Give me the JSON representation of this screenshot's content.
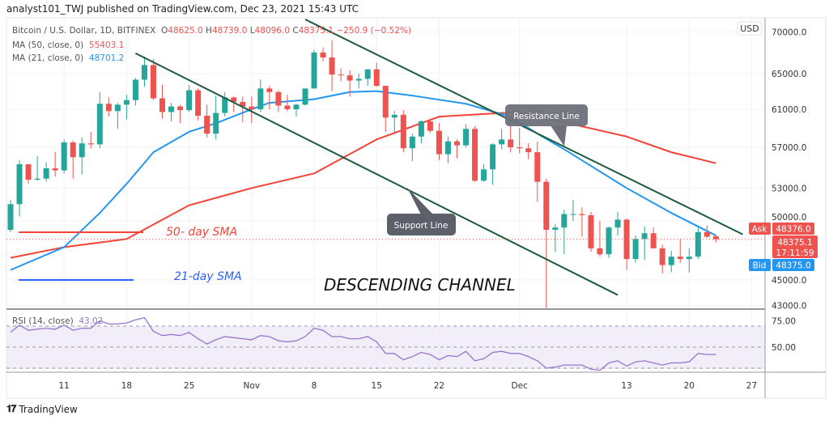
{
  "publish_line": "analyst101_TWJ published on TradingView.com, Dec 23, 2021 15:43 UTC",
  "legend": {
    "symbol": "Bitcoin / U.S. Dollar, 1D, BITFINEX",
    "o_label": "O",
    "o": "48625.0",
    "h_label": "H",
    "h": "48739.0",
    "l_label": "L",
    "l": "48096.0",
    "c_label": "C",
    "c": "48375.1",
    "change": "−250.9 (−0.52%)",
    "ma50_label": "MA (50, close, 0)",
    "ma50_value": "55403.1",
    "ma21_label": "MA (21, close, 0)",
    "ma21_value": "48701.2",
    "rsi_label": "RSI (14, close)",
    "rsi_value": "43.02"
  },
  "currency_button": "USD",
  "price_labels": {
    "ask_tag": "Ask",
    "ask": "48376.0",
    "last": "48375.1",
    "countdown": "17:11:59",
    "bid_tag": "Bid",
    "bid": "48375.0"
  },
  "annotations": {
    "sma50_text": "50- day SMA",
    "sma21_text": "21-day SMA",
    "support": "Support Line",
    "resistance": "Resistance Line",
    "title": "DESCENDING CHANNEL"
  },
  "footer": {
    "brand": "TradingView"
  },
  "colors": {
    "up": "#26a69a",
    "down": "#ef5350",
    "ma50": "#f44336",
    "ma21": "#2196f3",
    "rsi": "#9575cd",
    "trendline": "#1e5a3c"
  },
  "chart_data": {
    "type": "candlestick",
    "y_scale": "log",
    "ylim": [
      42000,
      71000
    ],
    "y_ticks": [
      {
        "label": "70000.0",
        "value": 70000
      },
      {
        "label": "65000.0",
        "value": 65000
      },
      {
        "label": "61000.0",
        "value": 61000
      },
      {
        "label": "57000.0",
        "value": 57000
      },
      {
        "label": "53000.0",
        "value": 53000
      },
      {
        "label": "50000.0",
        "value": 50000
      },
      {
        "label": "45000.0",
        "value": 45000
      },
      {
        "label": "43000.0",
        "value": 43000
      }
    ],
    "x_ticks": [
      {
        "label": "11",
        "date": "2021-10-11"
      },
      {
        "label": "18",
        "date": "2021-10-18"
      },
      {
        "label": "25",
        "date": "2021-10-25"
      },
      {
        "label": "Nov",
        "date": "2021-11-01"
      },
      {
        "label": "8",
        "date": "2021-11-08"
      },
      {
        "label": "15",
        "date": "2021-11-15"
      },
      {
        "label": "22",
        "date": "2021-11-22"
      },
      {
        "label": "Dec",
        "date": "2021-12-01"
      },
      {
        "label": "13",
        "date": "2021-12-13"
      },
      {
        "label": "20",
        "date": "2021-12-20"
      },
      {
        "label": "27",
        "date": "2021-12-27"
      }
    ],
    "candles_columns": [
      "date",
      "open",
      "high",
      "low",
      "close"
    ],
    "candles": [
      [
        "2021-10-05",
        49200,
        51900,
        49000,
        51500
      ],
      [
        "2021-10-06",
        51500,
        55700,
        50400,
        55300
      ],
      [
        "2021-10-07",
        55300,
        55300,
        53400,
        53800
      ],
      [
        "2021-10-08",
        53800,
        56100,
        53700,
        53900
      ],
      [
        "2021-10-09",
        53900,
        55500,
        53600,
        54900
      ],
      [
        "2021-10-10",
        54900,
        56500,
        54100,
        54700
      ],
      [
        "2021-10-11",
        54700,
        57800,
        54400,
        57500
      ],
      [
        "2021-10-12",
        57500,
        57700,
        53900,
        56000
      ],
      [
        "2021-10-13",
        56000,
        58000,
        54300,
        57400
      ],
      [
        "2021-10-14",
        57400,
        58600,
        56900,
        57300
      ],
      [
        "2021-10-15",
        57300,
        62900,
        56900,
        61600
      ],
      [
        "2021-10-16",
        61600,
        62300,
        60200,
        60800
      ],
      [
        "2021-10-17",
        60800,
        61700,
        58900,
        61500
      ],
      [
        "2021-10-18",
        61500,
        62600,
        59900,
        62000
      ],
      [
        "2021-10-19",
        62000,
        64500,
        61400,
        64300
      ],
      [
        "2021-10-20",
        64300,
        67000,
        63500,
        66000
      ],
      [
        "2021-10-21",
        66000,
        66700,
        62000,
        62200
      ],
      [
        "2021-10-22",
        62200,
        63700,
        60000,
        60700
      ],
      [
        "2021-10-23",
        60700,
        61700,
        59700,
        61300
      ],
      [
        "2021-10-24",
        61300,
        61500,
        59500,
        60900
      ],
      [
        "2021-10-25",
        60900,
        63700,
        60700,
        63100
      ],
      [
        "2021-10-26",
        63100,
        63300,
        59800,
        60300
      ],
      [
        "2021-10-27",
        60300,
        61500,
        58000,
        58400
      ],
      [
        "2021-10-28",
        58400,
        62500,
        57800,
        60600
      ],
      [
        "2021-10-29",
        60600,
        62900,
        60200,
        62300
      ],
      [
        "2021-10-30",
        62300,
        62400,
        60700,
        61800
      ],
      [
        "2021-10-31",
        61800,
        62400,
        59600,
        61300
      ],
      [
        "2021-11-01",
        61300,
        62400,
        59500,
        61000
      ],
      [
        "2021-11-02",
        61000,
        64300,
        60700,
        63300
      ],
      [
        "2021-11-03",
        63300,
        63600,
        61000,
        62900
      ],
      [
        "2021-11-04",
        62900,
        63100,
        60700,
        61400
      ],
      [
        "2021-11-05",
        61400,
        62600,
        60800,
        61000
      ],
      [
        "2021-11-06",
        61000,
        61600,
        60200,
        61500
      ],
      [
        "2021-11-07",
        61500,
        63300,
        61400,
        63300
      ],
      [
        "2021-11-08",
        63300,
        67800,
        63300,
        67500
      ],
      [
        "2021-11-09",
        67500,
        68100,
        66400,
        66900
      ],
      [
        "2021-11-10",
        66900,
        69000,
        63000,
        64900
      ],
      [
        "2021-11-11",
        64900,
        65600,
        64100,
        64800
      ],
      [
        "2021-11-12",
        64800,
        65400,
        62400,
        64200
      ],
      [
        "2021-11-13",
        64200,
        65000,
        63300,
        64400
      ],
      [
        "2021-11-14",
        64400,
        65500,
        63600,
        65500
      ],
      [
        "2021-11-15",
        65500,
        66300,
        63500,
        63600
      ],
      [
        "2021-11-16",
        63600,
        63600,
        58600,
        60100
      ],
      [
        "2021-11-17",
        60100,
        60800,
        58500,
        60400
      ],
      [
        "2021-11-18",
        60400,
        60900,
        56500,
        56900
      ],
      [
        "2021-11-19",
        56900,
        58400,
        55600,
        58100
      ],
      [
        "2021-11-20",
        58100,
        59800,
        57400,
        59700
      ],
      [
        "2021-11-21",
        59700,
        60000,
        58500,
        58700
      ],
      [
        "2021-11-22",
        58700,
        59500,
        55700,
        56300
      ],
      [
        "2021-11-23",
        56300,
        58100,
        55400,
        57600
      ],
      [
        "2021-11-24",
        57600,
        57800,
        55900,
        57200
      ],
      [
        "2021-11-25",
        57200,
        59400,
        57000,
        58900
      ],
      [
        "2021-11-26",
        58900,
        59200,
        53600,
        53700
      ],
      [
        "2021-11-27",
        53700,
        55300,
        53600,
        54800
      ],
      [
        "2021-11-28",
        54800,
        57400,
        53300,
        57300
      ],
      [
        "2021-11-29",
        57300,
        58900,
        56800,
        57800
      ],
      [
        "2021-11-30",
        57800,
        59200,
        56500,
        57000
      ],
      [
        "2021-12-01",
        57000,
        59000,
        56400,
        56900
      ],
      [
        "2021-12-02",
        56900,
        57400,
        55800,
        56500
      ],
      [
        "2021-12-03",
        56500,
        57600,
        51700,
        53600
      ],
      [
        "2021-12-04",
        53600,
        53900,
        42000,
        49200
      ],
      [
        "2021-12-05",
        49200,
        49700,
        47300,
        49400
      ],
      [
        "2021-12-06",
        49400,
        51000,
        47100,
        50600
      ],
      [
        "2021-12-07",
        50600,
        51900,
        50000,
        50600
      ],
      [
        "2021-12-08",
        50600,
        51200,
        48600,
        50500
      ],
      [
        "2021-12-09",
        50500,
        50800,
        47300,
        47600
      ],
      [
        "2021-12-10",
        47600,
        50000,
        46900,
        47100
      ],
      [
        "2021-12-11",
        47100,
        49500,
        46800,
        49400
      ],
      [
        "2021-12-12",
        49400,
        50800,
        48700,
        50100
      ],
      [
        "2021-12-13",
        50100,
        50200,
        45800,
        46700
      ],
      [
        "2021-12-14",
        46700,
        48700,
        46400,
        48400
      ],
      [
        "2021-12-15",
        48400,
        49500,
        46600,
        48900
      ],
      [
        "2021-12-16",
        48900,
        49400,
        47600,
        47600
      ],
      [
        "2021-12-17",
        47600,
        47900,
        45500,
        46200
      ],
      [
        "2021-12-18",
        46200,
        47400,
        45600,
        46900
      ],
      [
        "2021-12-19",
        46900,
        48400,
        46400,
        46700
      ],
      [
        "2021-12-20",
        46700,
        47600,
        45600,
        46900
      ],
      [
        "2021-12-21",
        46900,
        49400,
        46700,
        49000
      ],
      [
        "2021-12-22",
        49000,
        49600,
        48500,
        48600
      ],
      [
        "2021-12-23",
        48625,
        48739,
        48096,
        48375.1
      ]
    ],
    "ma21": [
      [
        "2021-10-05",
        45800
      ],
      [
        "2021-10-11",
        47700
      ],
      [
        "2021-10-15",
        50700
      ],
      [
        "2021-10-18",
        53400
      ],
      [
        "2021-10-21",
        56500
      ],
      [
        "2021-10-25",
        58600
      ],
      [
        "2021-10-28",
        59500
      ],
      [
        "2021-11-01",
        61000
      ],
      [
        "2021-11-03",
        61700
      ],
      [
        "2021-11-08",
        62100
      ],
      [
        "2021-11-12",
        62900
      ],
      [
        "2021-11-15",
        63000
      ],
      [
        "2021-11-19",
        62500
      ],
      [
        "2021-11-25",
        61600
      ],
      [
        "2021-11-30",
        60200
      ],
      [
        "2021-12-03",
        58400
      ],
      [
        "2021-12-06",
        56800
      ],
      [
        "2021-12-13",
        53000
      ],
      [
        "2021-12-18",
        50700
      ],
      [
        "2021-12-23",
        48701.2
      ]
    ],
    "ma50": [
      [
        "2021-10-05",
        46800
      ],
      [
        "2021-10-11",
        47700
      ],
      [
        "2021-10-18",
        48400
      ],
      [
        "2021-10-25",
        51400
      ],
      [
        "2021-11-01",
        53000
      ],
      [
        "2021-11-08",
        54400
      ],
      [
        "2021-11-15",
        57800
      ],
      [
        "2021-11-22",
        60200
      ],
      [
        "2021-11-29",
        60600
      ],
      [
        "2021-12-01",
        60600
      ],
      [
        "2021-12-06",
        59600
      ],
      [
        "2021-12-13",
        58100
      ],
      [
        "2021-12-18",
        56500
      ],
      [
        "2021-12-23",
        55403.1
      ]
    ],
    "trendlines": [
      {
        "name": "support",
        "from": [
          "2021-10-19",
          67400
        ],
        "to": [
          "2021-12-12",
          43800
        ]
      },
      {
        "name": "resistance",
        "from": [
          "2021-11-07",
          71600
        ],
        "to": [
          "2021-12-26",
          48800
        ]
      }
    ],
    "rsi": {
      "ylim": [
        0,
        100
      ],
      "levels": [
        70,
        50,
        30
      ],
      "y_ticks": [
        {
          "label": "75.00",
          "value": 75
        },
        {
          "label": "50.00",
          "value": 50
        }
      ],
      "values": [
        64,
        71,
        66,
        67,
        68,
        67,
        71,
        66,
        68,
        68,
        75,
        72,
        72,
        73,
        76,
        78,
        65,
        61,
        62,
        61,
        64,
        58,
        53,
        57,
        60,
        59,
        58,
        57,
        61,
        60,
        56,
        55,
        56,
        60,
        68,
        66,
        60,
        60,
        58,
        58,
        60,
        55,
        44,
        44,
        38,
        41,
        45,
        43,
        38,
        42,
        41,
        46,
        37,
        39,
        45,
        46,
        44,
        44,
        41,
        37,
        30,
        31,
        33,
        33,
        33,
        29,
        28,
        35,
        37,
        32,
        36,
        37,
        35,
        33,
        35,
        35,
        36,
        44,
        43,
        43
      ]
    }
  }
}
